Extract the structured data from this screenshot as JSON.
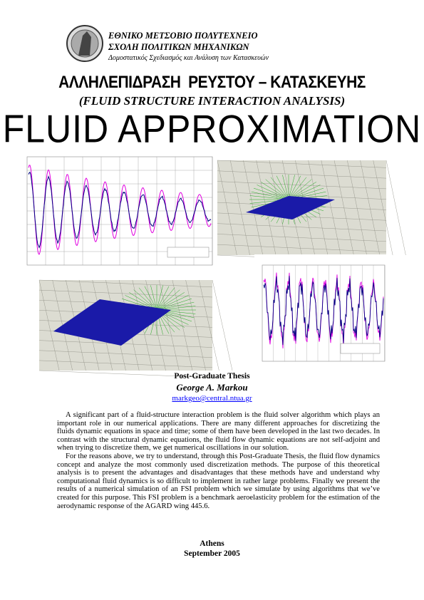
{
  "header": {
    "institution": "ΕΘΝΙΚΟ ΜΕΤΣΟΒΙΟ ΠΟΛΥΤΕΧΝΕΙΟ",
    "school": "ΣΧΟΛΗ ΠΟΛΙΤΙΚΩΝ ΜΗΧΑΝΙΚΩΝ",
    "program": "Δομοστατικός Σχεδιασμός και Ανάλυση των Κατασκευών"
  },
  "title_greek": "ΑΛΛΗΛΕΠΙΔΡΑΣΗ  ΡΕΥΣΤΟΥ – ΚΑΤΑΣΚΕΥΗΣ",
  "title_english": "(FLUID STRUCTURE INTERACTION ANALYSIS)",
  "main_title": "FLUID APPROXIMATION",
  "thesis": {
    "kind": "Post-Graduate Thesis",
    "author": "George A. Markou",
    "email": "markgeo@central.ntua.gr"
  },
  "abstract": [
    "A significant part of a fluid-structure interaction problem is the fluid solver algorithm which plays an important role in our numerical applications. There are many different approaches for discretizing the fluids dynamic equations in space and time; some of them have been developed in the last two decades. In contrast with the structural dynamic equations, the fluid flow dynamic equations are not self-adjoint and when trying to discretize them, we get numerical oscillations in our solution.",
    "For the reasons above, we try to understand, through this Post-Graduate Thesis, the fluid flow dynamics concept and analyze the most commonly used discretization methods. The purpose of this theoretical analysis is to present the advantages and disadvantages that these methods have and understand why computational fluid dynamics is so difficult to implement in rather large problems. Finally we present the results of a numerical simulation of an FSI problem which we simulate by using algorithms that we’ve created for this purpose. This FSI problem is a benchmark aeroelasticity problem for the estimation of the aerodynamic response of the AGARD wing 445.6."
  ],
  "footer": {
    "place": "Athens",
    "date": "September 2005"
  }
}
